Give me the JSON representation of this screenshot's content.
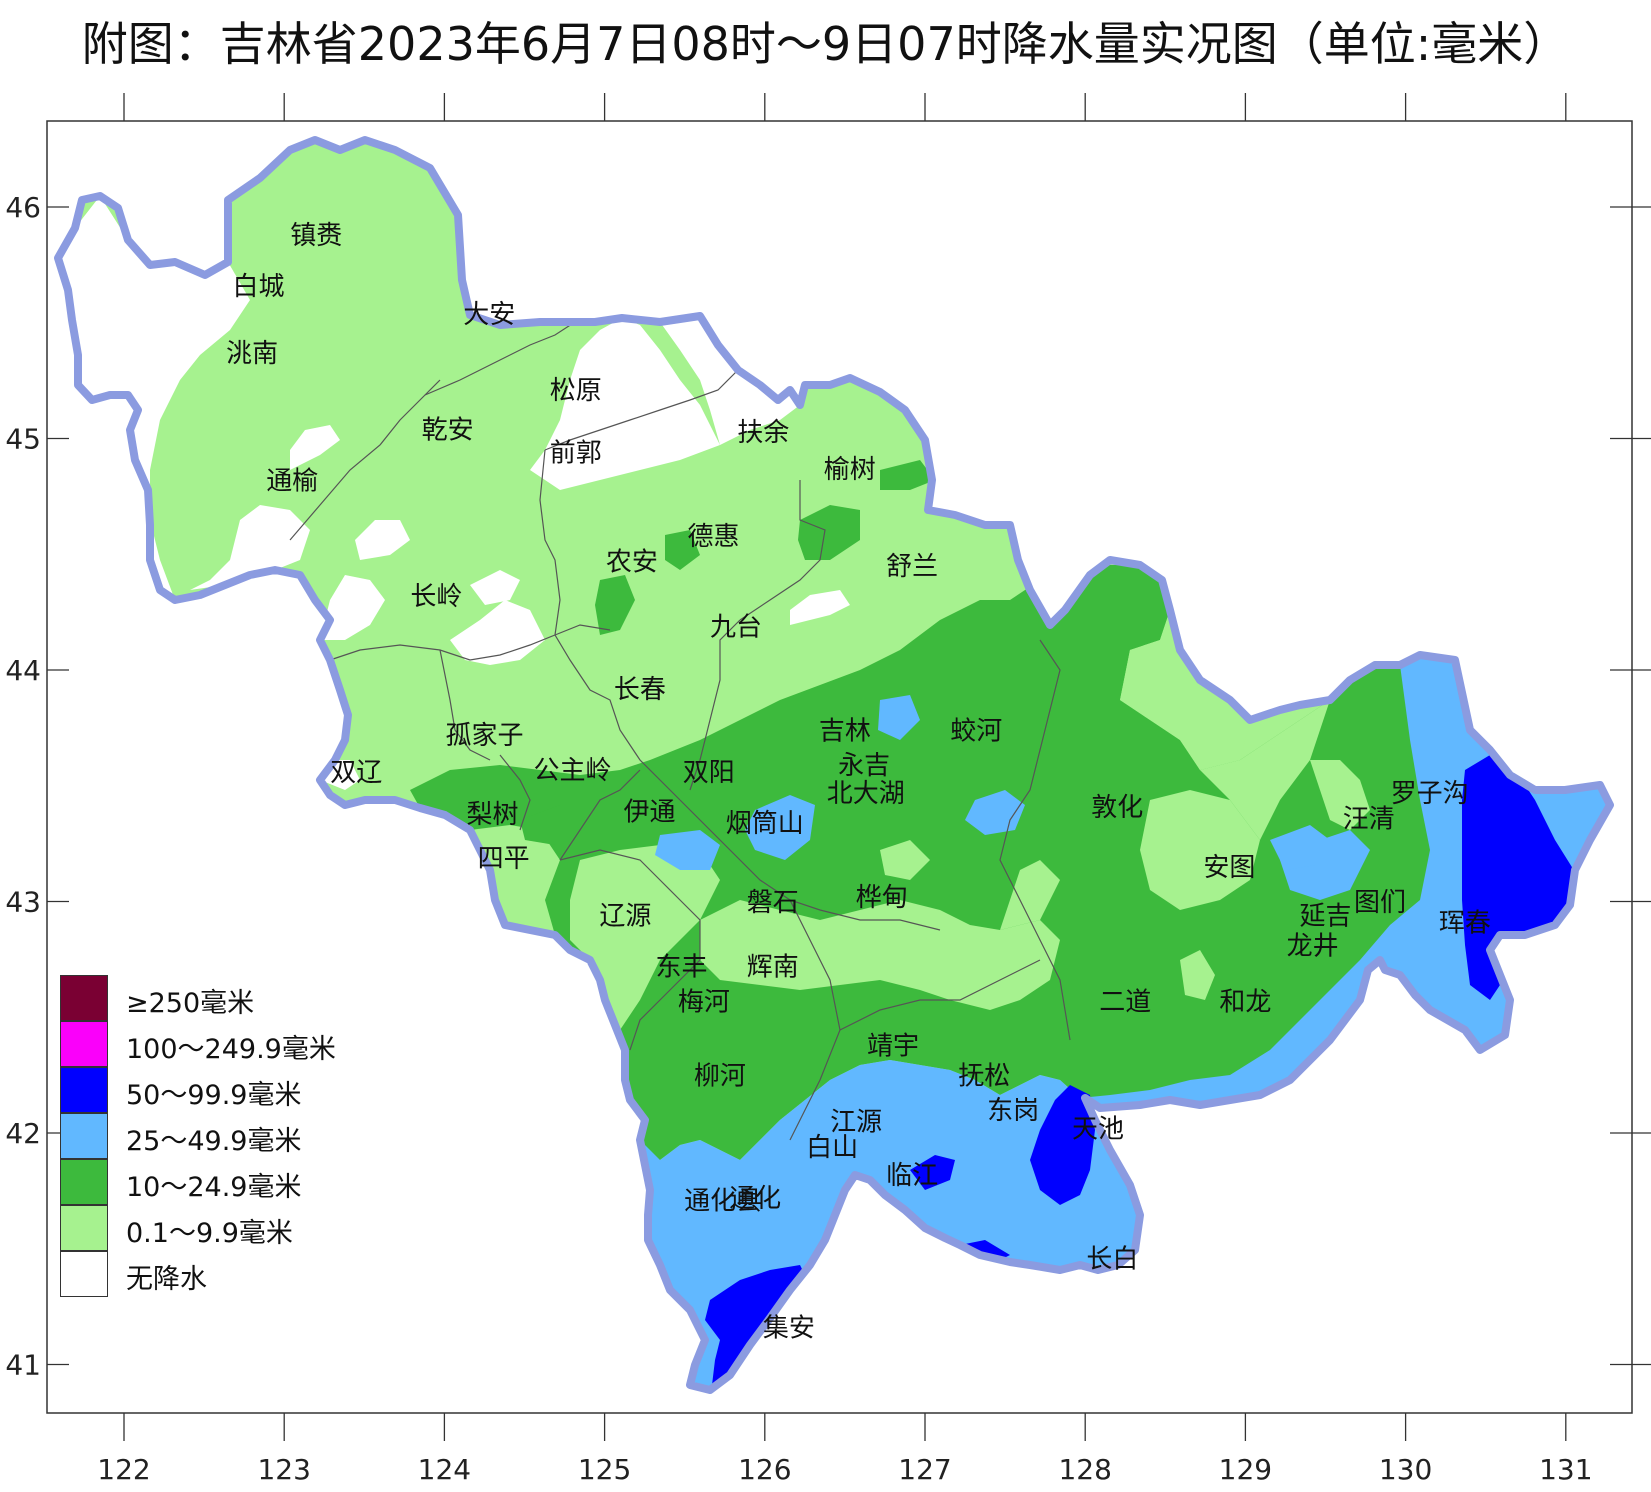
{
  "title": "附图：吉林省2023年6月7日08时～9日07时降水量实况图（单位:毫米）",
  "axes": {
    "lon_ticks": [
      "122",
      "123",
      "124",
      "125",
      "126",
      "127",
      "128",
      "129",
      "130",
      "131"
    ],
    "lat_ticks": [
      "46",
      "45",
      "44",
      "43",
      "42",
      "41"
    ]
  },
  "colors": {
    "none": "#ffffff",
    "light_green": "#a6f28f",
    "green": "#3dba3d",
    "light_blue": "#61b8ff",
    "blue": "#0000ff",
    "magenta": "#fa00fa",
    "dark_red": "#7a0033",
    "border": "#8b9be0"
  },
  "legend": [
    {
      "label": "≥250毫米",
      "color": "#7a0033"
    },
    {
      "label": "100～249.9毫米",
      "color": "#fa00fa"
    },
    {
      "label": "50～99.9毫米",
      "color": "#0000ff"
    },
    {
      "label": "25～49.9毫米",
      "color": "#61b8ff"
    },
    {
      "label": "10～24.9毫米",
      "color": "#3dba3d"
    },
    {
      "label": "0.1～9.9毫米",
      "color": "#a6f28f"
    },
    {
      "label": "无降水",
      "color": "#ffffff"
    }
  ],
  "cities": [
    {
      "name": "镇赉",
      "lon": 123.2,
      "lat": 45.84
    },
    {
      "name": "白城",
      "lon": 122.84,
      "lat": 45.62
    },
    {
      "name": "洮南",
      "lon": 122.8,
      "lat": 45.33
    },
    {
      "name": "大安",
      "lon": 124.28,
      "lat": 45.5
    },
    {
      "name": "松原",
      "lon": 124.82,
      "lat": 45.17
    },
    {
      "name": "乾安",
      "lon": 124.02,
      "lat": 45.0
    },
    {
      "name": "通榆",
      "lon": 123.05,
      "lat": 44.78
    },
    {
      "name": "前郭",
      "lon": 124.82,
      "lat": 44.9
    },
    {
      "name": "扶余",
      "lon": 125.99,
      "lat": 44.99
    },
    {
      "name": "榆树",
      "lon": 126.53,
      "lat": 44.83
    },
    {
      "name": "德惠",
      "lon": 125.68,
      "lat": 44.54
    },
    {
      "name": "农安",
      "lon": 125.17,
      "lat": 44.43
    },
    {
      "name": "舒兰",
      "lon": 126.92,
      "lat": 44.41
    },
    {
      "name": "长岭",
      "lon": 123.95,
      "lat": 44.28
    },
    {
      "name": "九台",
      "lon": 125.82,
      "lat": 44.15
    },
    {
      "name": "长春",
      "lon": 125.22,
      "lat": 43.88
    },
    {
      "name": "孤家子",
      "lon": 124.25,
      "lat": 43.68
    },
    {
      "name": "吉林",
      "lon": 126.5,
      "lat": 43.7
    },
    {
      "name": "蛟河",
      "lon": 127.32,
      "lat": 43.7
    },
    {
      "name": "双辽",
      "lon": 123.45,
      "lat": 43.52
    },
    {
      "name": "公主岭",
      "lon": 124.8,
      "lat": 43.53
    },
    {
      "name": "双阳",
      "lon": 125.65,
      "lat": 43.52
    },
    {
      "name": "永吉",
      "lon": 126.62,
      "lat": 43.55
    },
    {
      "name": "北大湖",
      "lon": 126.63,
      "lat": 43.43
    },
    {
      "name": "敦化",
      "lon": 128.2,
      "lat": 43.37
    },
    {
      "name": "梨树",
      "lon": 124.3,
      "lat": 43.34
    },
    {
      "name": "伊通",
      "lon": 125.28,
      "lat": 43.35
    },
    {
      "name": "烟筒山",
      "lon": 126.0,
      "lat": 43.3
    },
    {
      "name": "罗子沟",
      "lon": 130.15,
      "lat": 43.43
    },
    {
      "name": "汪清",
      "lon": 129.77,
      "lat": 43.32
    },
    {
      "name": "四平",
      "lon": 124.37,
      "lat": 43.15
    },
    {
      "name": "安图",
      "lon": 128.9,
      "lat": 43.11
    },
    {
      "name": "磐石",
      "lon": 126.05,
      "lat": 42.96
    },
    {
      "name": "桦甸",
      "lon": 126.73,
      "lat": 42.98
    },
    {
      "name": "辽源",
      "lon": 125.13,
      "lat": 42.9
    },
    {
      "name": "图们",
      "lon": 129.84,
      "lat": 42.96
    },
    {
      "name": "延吉",
      "lon": 129.5,
      "lat": 42.9
    },
    {
      "name": "珲春",
      "lon": 130.37,
      "lat": 42.87
    },
    {
      "name": "龙井",
      "lon": 129.42,
      "lat": 42.77
    },
    {
      "name": "东丰",
      "lon": 125.48,
      "lat": 42.68
    },
    {
      "name": "辉南",
      "lon": 126.05,
      "lat": 42.68
    },
    {
      "name": "梅河",
      "lon": 125.62,
      "lat": 42.53
    },
    {
      "name": "二道",
      "lon": 128.25,
      "lat": 42.53
    },
    {
      "name": "和龙",
      "lon": 129.0,
      "lat": 42.53
    },
    {
      "name": "靖宇",
      "lon": 126.8,
      "lat": 42.34
    },
    {
      "name": "抚松",
      "lon": 127.37,
      "lat": 42.21
    },
    {
      "name": "柳河",
      "lon": 125.72,
      "lat": 42.21
    },
    {
      "name": "东岗",
      "lon": 127.55,
      "lat": 42.06
    },
    {
      "name": "天池",
      "lon": 128.08,
      "lat": 41.98
    },
    {
      "name": "江源",
      "lon": 126.57,
      "lat": 42.01
    },
    {
      "name": "白山",
      "lon": 126.42,
      "lat": 41.9
    },
    {
      "name": "临江",
      "lon": 126.92,
      "lat": 41.78
    },
    {
      "name": "通化县",
      "lon": 125.74,
      "lat": 41.67
    },
    {
      "name": "通化",
      "lon": 125.94,
      "lat": 41.68
    },
    {
      "name": "长白",
      "lon": 128.17,
      "lat": 41.42
    },
    {
      "name": "集安",
      "lon": 126.15,
      "lat": 41.12
    }
  ]
}
